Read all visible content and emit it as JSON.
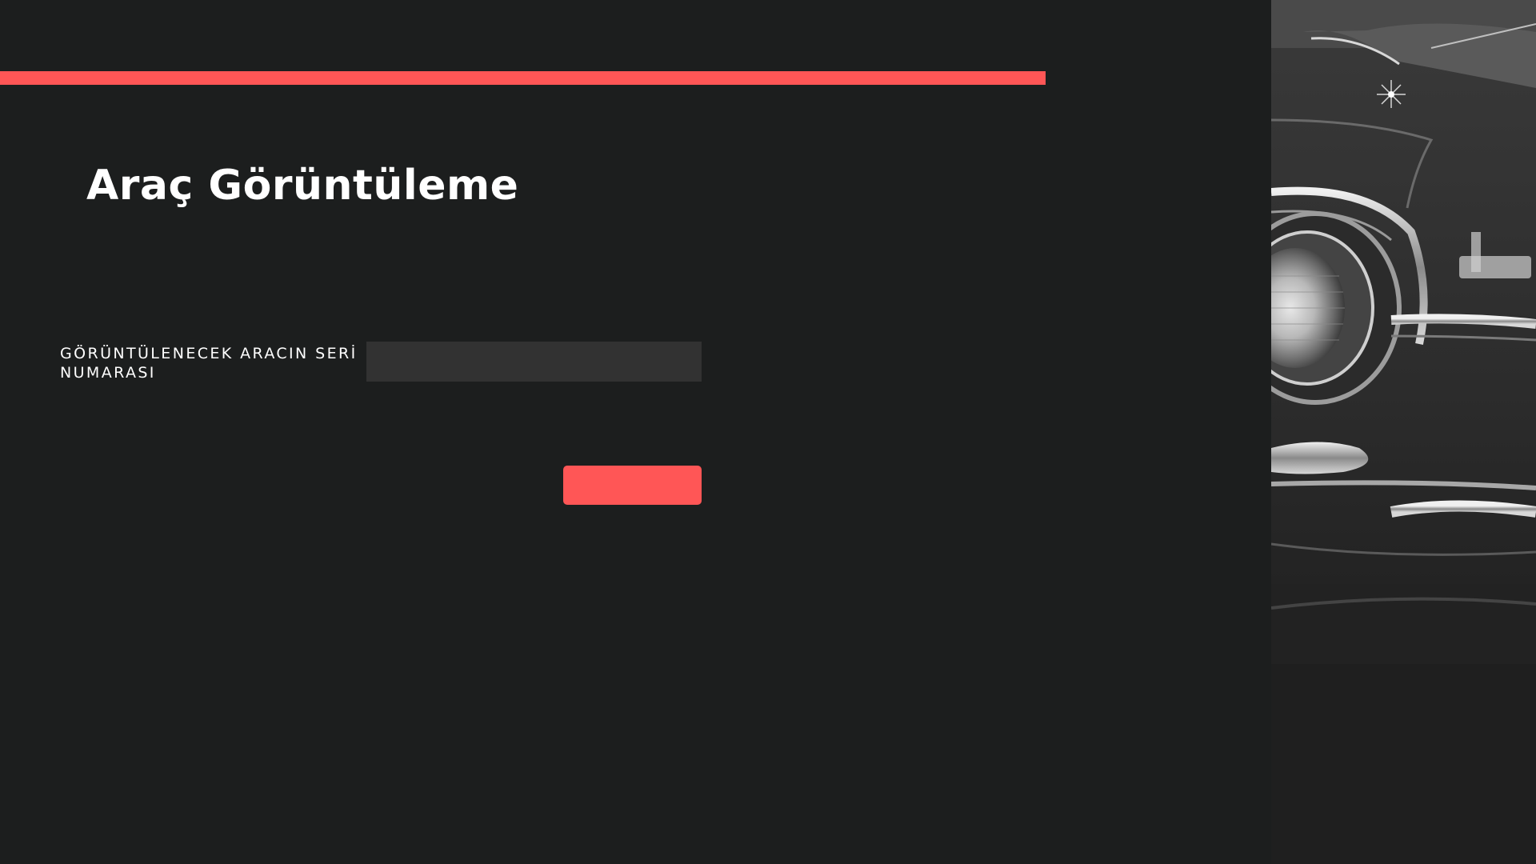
{
  "page": {
    "title": "Araç Görüntüleme",
    "accent_color": "#ff5656",
    "background_color": "#1c1e1e"
  },
  "form": {
    "serial_label": "GÖRÜNTÜLENECEK ARACIN SERİ NUMARASI",
    "serial_value": "",
    "serial_placeholder": "",
    "submit_label": ""
  },
  "hero_image": {
    "icon": "classic-car-photo"
  }
}
